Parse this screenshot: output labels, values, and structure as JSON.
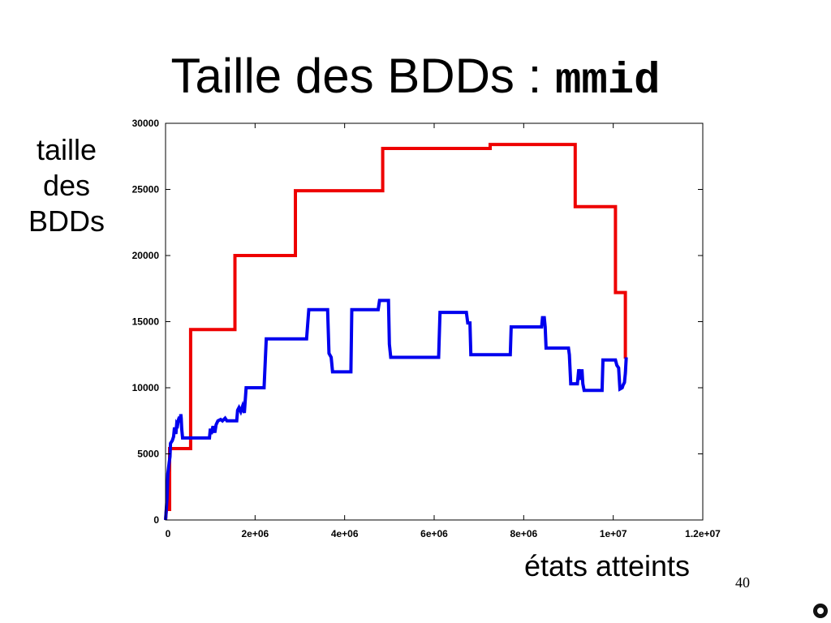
{
  "slide": {
    "title_text": "Taille des BDDs : ",
    "title_code": "mmid",
    "page_number": "40"
  },
  "colors": {
    "series_red": "#ee0000",
    "series_blue": "#0000ee"
  },
  "chart_data": {
    "type": "line",
    "title": "Taille des BDDs : mmid",
    "xlabel": "états atteints",
    "ylabel": "taille des BDDs",
    "xlim": [
      0,
      12000000
    ],
    "ylim": [
      0,
      30000
    ],
    "x_ticks": [
      0,
      2000000,
      4000000,
      6000000,
      8000000,
      10000000,
      12000000
    ],
    "x_tick_labels": [
      "0",
      "2e+06",
      "4e+06",
      "6e+06",
      "8e+06",
      "1e+07",
      "1.2e+07"
    ],
    "y_ticks": [
      0,
      5000,
      10000,
      15000,
      20000,
      25000,
      30000
    ],
    "y_tick_labels": [
      "0",
      "5000",
      "10000",
      "15000",
      "20000",
      "25000",
      "30000"
    ],
    "grid": false,
    "legend": "none",
    "series": [
      {
        "color": "#ee0000",
        "points": [
          [
            0,
            0
          ],
          [
            20000,
            800
          ],
          [
            90000,
            800
          ],
          [
            90000,
            5400
          ],
          [
            560000,
            5400
          ],
          [
            560000,
            14400
          ],
          [
            1550000,
            14400
          ],
          [
            1550000,
            20000
          ],
          [
            2900000,
            20000
          ],
          [
            2900000,
            24900
          ],
          [
            4850000,
            24900
          ],
          [
            4850000,
            28100
          ],
          [
            7250000,
            28100
          ],
          [
            7250000,
            28400
          ],
          [
            9150000,
            28400
          ],
          [
            9150000,
            23700
          ],
          [
            10050000,
            23700
          ],
          [
            10050000,
            17200
          ],
          [
            10270000,
            17200
          ],
          [
            10270000,
            12200
          ]
        ]
      },
      {
        "color": "#0000ee",
        "points": [
          [
            0,
            0
          ],
          [
            30000,
            1500
          ],
          [
            50000,
            3500
          ],
          [
            80000,
            4300
          ],
          [
            100000,
            4800
          ],
          [
            110000,
            5800
          ],
          [
            150000,
            6000
          ],
          [
            180000,
            6300
          ],
          [
            200000,
            7000
          ],
          [
            230000,
            6500
          ],
          [
            250000,
            7300
          ],
          [
            270000,
            7200
          ],
          [
            290000,
            7600
          ],
          [
            310000,
            7800
          ],
          [
            330000,
            7400
          ],
          [
            340000,
            8000
          ],
          [
            350000,
            7700
          ],
          [
            360000,
            6900
          ],
          [
            380000,
            6200
          ],
          [
            980000,
            6200
          ],
          [
            1000000,
            6900
          ],
          [
            1020000,
            6500
          ],
          [
            1060000,
            7100
          ],
          [
            1100000,
            6600
          ],
          [
            1130000,
            7200
          ],
          [
            1170000,
            7500
          ],
          [
            1230000,
            7600
          ],
          [
            1270000,
            7500
          ],
          [
            1330000,
            7700
          ],
          [
            1370000,
            7500
          ],
          [
            1590000,
            7500
          ],
          [
            1610000,
            8300
          ],
          [
            1640000,
            8500
          ],
          [
            1680000,
            8200
          ],
          [
            1720000,
            8600
          ],
          [
            1760000,
            8100
          ],
          [
            1800000,
            10000
          ],
          [
            2200000,
            10000
          ],
          [
            2250000,
            13700
          ],
          [
            3150000,
            13700
          ],
          [
            3200000,
            15900
          ],
          [
            3620000,
            15900
          ],
          [
            3650000,
            12600
          ],
          [
            3700000,
            12300
          ],
          [
            3730000,
            11200
          ],
          [
            4140000,
            11200
          ],
          [
            4160000,
            15900
          ],
          [
            4750000,
            15900
          ],
          [
            4780000,
            16600
          ],
          [
            4980000,
            16600
          ],
          [
            5000000,
            13300
          ],
          [
            5030000,
            12300
          ],
          [
            6100000,
            12300
          ],
          [
            6130000,
            15700
          ],
          [
            6720000,
            15700
          ],
          [
            6750000,
            14900
          ],
          [
            6800000,
            14900
          ],
          [
            6820000,
            12500
          ],
          [
            7700000,
            12500
          ],
          [
            7720000,
            14600
          ],
          [
            8400000,
            14600
          ],
          [
            8420000,
            15300
          ],
          [
            8460000,
            15300
          ],
          [
            8480000,
            14600
          ],
          [
            8500000,
            13000
          ],
          [
            9000000,
            13000
          ],
          [
            9020000,
            12500
          ],
          [
            9050000,
            10300
          ],
          [
            9200000,
            10300
          ],
          [
            9230000,
            11400
          ],
          [
            9270000,
            10600
          ],
          [
            9300000,
            11400
          ],
          [
            9320000,
            10300
          ],
          [
            9350000,
            9800
          ],
          [
            9750000,
            9800
          ],
          [
            9770000,
            12100
          ],
          [
            10050000,
            12100
          ],
          [
            10080000,
            11700
          ],
          [
            10120000,
            11500
          ],
          [
            10150000,
            9900
          ],
          [
            10200000,
            10000
          ],
          [
            10220000,
            10200
          ],
          [
            10250000,
            10400
          ],
          [
            10270000,
            11100
          ],
          [
            10290000,
            12300
          ]
        ]
      }
    ]
  }
}
